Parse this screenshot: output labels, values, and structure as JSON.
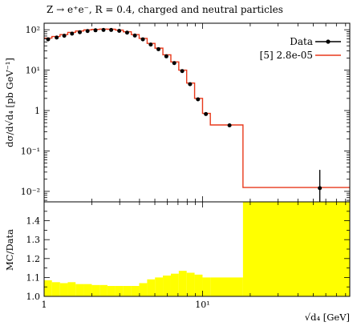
{
  "chart_data": [
    {
      "type": "line",
      "title": "Z → e⁺e⁻, R = 0.4, charged and neutral particles",
      "xlabel": "√d₄ [GeV]",
      "ylabel": "dσ/d√d₄ [pb GeV⁻¹]",
      "xscale": "log",
      "yscale": "log",
      "xlim": [
        1,
        85
      ],
      "ylim": [
        0.0055,
        145
      ],
      "x_ticks": [
        "1",
        "10¹"
      ],
      "y_ticks": [
        "10⁻²",
        "10⁻¹",
        "1",
        "10¹",
        "10²"
      ],
      "legend": "top-right",
      "series": [
        {
          "name": "Data",
          "color": "#000000",
          "x": [
            1.06,
            1.2,
            1.34,
            1.5,
            1.68,
            1.88,
            2.11,
            2.37,
            2.65,
            2.98,
            3.34,
            3.74,
            4.2,
            4.71,
            5.27,
            5.91,
            6.63,
            7.44,
            8.34,
            9.36,
            10.5,
            14.8,
            55.0
          ],
          "y": [
            58,
            64,
            71,
            80,
            87,
            93,
            97,
            99,
            99,
            94,
            85,
            72,
            58,
            43,
            33,
            22,
            15,
            9.5,
            4.5,
            1.9,
            0.82,
            0.43,
            0.012
          ],
          "y_err": [
            null,
            null,
            null,
            null,
            null,
            null,
            null,
            null,
            null,
            null,
            null,
            null,
            null,
            null,
            null,
            null,
            null,
            null,
            null,
            null,
            null,
            null,
            [
              0.007,
              0.022
            ]
          ]
        },
        {
          "name": "[5] 2.8e-05",
          "color": "#e8391b",
          "type": "step",
          "bin_edges": [
            1.0,
            1.12,
            1.26,
            1.41,
            1.58,
            1.78,
            2.0,
            2.24,
            2.51,
            2.82,
            3.16,
            3.55,
            3.98,
            4.47,
            5.01,
            5.62,
            6.31,
            7.08,
            7.94,
            8.91,
            10.0,
            11.2,
            18.0,
            85.0
          ],
          "values": [
            62,
            68,
            76,
            86,
            93,
            99,
            102,
            104,
            103,
            98,
            89,
            76,
            61,
            46,
            35,
            24,
            16,
            10,
            4.8,
            2.0,
            0.85,
            0.44,
            0.0125
          ]
        }
      ]
    },
    {
      "type": "area",
      "ylabel": "MC/Data",
      "xlabel": "√d₄ [GeV]",
      "xscale": "log",
      "xlim": [
        1,
        85
      ],
      "ylim": [
        1.0,
        1.5
      ],
      "y_ticks": [
        "1.0",
        "1.1",
        "1.2",
        "1.3",
        "1.4"
      ],
      "x_ticks": [
        "1",
        "10¹"
      ],
      "band_color": "#ffff00",
      "bin_edges": [
        1.0,
        1.12,
        1.26,
        1.41,
        1.58,
        1.78,
        2.0,
        2.24,
        2.51,
        2.82,
        3.16,
        3.55,
        3.98,
        4.47,
        5.01,
        5.62,
        6.31,
        7.08,
        7.94,
        8.91,
        10.0,
        11.2,
        18.0,
        85.0
      ],
      "band_upper": [
        1.085,
        1.075,
        1.07,
        1.075,
        1.065,
        1.065,
        1.06,
        1.06,
        1.055,
        1.055,
        1.055,
        1.055,
        1.07,
        1.09,
        1.1,
        1.11,
        1.12,
        1.135,
        1.125,
        1.115,
        1.1,
        1.1,
        1.5
      ]
    }
  ]
}
